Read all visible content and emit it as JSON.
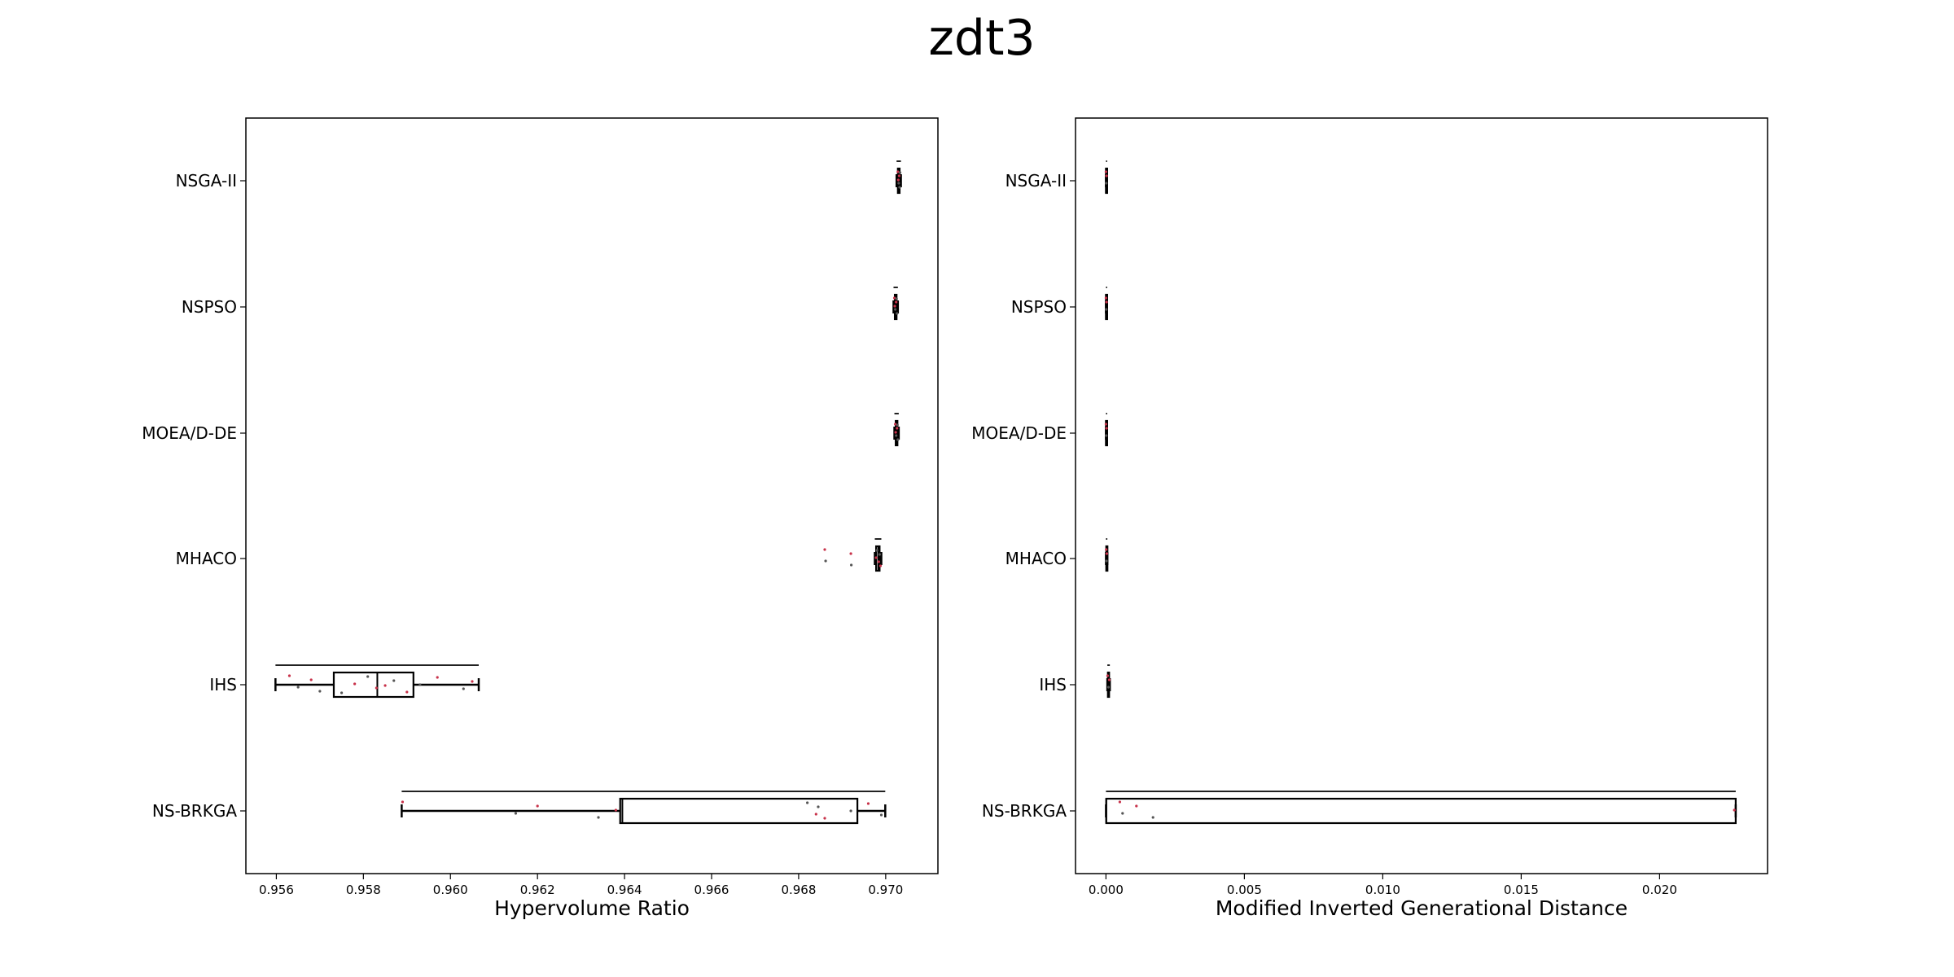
{
  "title": "zdt3",
  "chart_data": [
    {
      "type": "box",
      "xlabel": "Hypervolume Ratio",
      "xlim": [
        0.9553,
        0.9712
      ],
      "xticks": [
        "0.956",
        "0.958",
        "0.960",
        "0.962",
        "0.964",
        "0.966",
        "0.968",
        "0.970"
      ],
      "categories": [
        "NSGA-II",
        "NSPSO",
        "MOEA/D-DE",
        "MHACO",
        "IHS",
        "NS-BRKGA"
      ],
      "boxes": [
        {
          "name": "NSGA-II",
          "whislo": 0.97025,
          "q1": 0.97028,
          "med": 0.9703,
          "q3": 0.97032,
          "whishi": 0.97035,
          "points": [
            0.97028,
            0.9703,
            0.97031,
            0.97032,
            0.97029,
            0.97033
          ]
        },
        {
          "name": "NSPSO",
          "whislo": 0.97018,
          "q1": 0.97021,
          "med": 0.97023,
          "q3": 0.97025,
          "whishi": 0.97028,
          "points": [
            0.9702,
            0.97022,
            0.97024,
            0.97026,
            0.97021,
            0.97025
          ]
        },
        {
          "name": "MOEA/D-DE",
          "whislo": 0.9702,
          "q1": 0.97023,
          "med": 0.97025,
          "q3": 0.97027,
          "whishi": 0.9703,
          "points": [
            0.97022,
            0.97024,
            0.97026,
            0.97028,
            0.97023,
            0.97027
          ]
        },
        {
          "name": "MHACO",
          "whislo": 0.96975,
          "q1": 0.96978,
          "med": 0.96983,
          "q3": 0.96986,
          "whishi": 0.9699,
          "points": [
            0.9686,
            0.96862,
            0.9692,
            0.96921,
            0.96978,
            0.9698,
            0.96984,
            0.96986,
            0.96988
          ]
        },
        {
          "name": "IHS",
          "whislo": 0.95598,
          "q1": 0.95732,
          "med": 0.95832,
          "q3": 0.95915,
          "whishi": 0.96065,
          "points": [
            0.9563,
            0.9565,
            0.9568,
            0.957,
            0.9578,
            0.9581,
            0.9583,
            0.9587,
            0.959,
            0.9593,
            0.9597,
            0.9603,
            0.9605,
            0.9575,
            0.9585
          ]
        },
        {
          "name": "NS-BRKGA",
          "whislo": 0.95888,
          "q1": 0.9639,
          "med": 0.96395,
          "q3": 0.96935,
          "whishi": 0.96999,
          "points": [
            0.9589,
            0.9615,
            0.962,
            0.9634,
            0.9638,
            0.9682,
            0.9684,
            0.96845,
            0.9686,
            0.9692,
            0.9696,
            0.9699
          ]
        }
      ]
    },
    {
      "type": "box",
      "xlabel": "Modified Inverted Generational Distance",
      "xlim": [
        -0.0011,
        0.0239
      ],
      "xticks": [
        "0.000",
        "0.005",
        "0.010",
        "0.015",
        "0.020"
      ],
      "categories": [
        "NSGA-II",
        "NSPSO",
        "MOEA/D-DE",
        "MHACO",
        "IHS",
        "NS-BRKGA"
      ],
      "boxes": [
        {
          "name": "NSGA-II",
          "whislo": 0.0,
          "q1": 0.0,
          "med": 0.0,
          "q3": 2e-05,
          "whishi": 4e-05,
          "points": [
            0.0,
            1e-05,
            2e-05
          ]
        },
        {
          "name": "NSPSO",
          "whislo": 0.0,
          "q1": 0.0,
          "med": 0.0,
          "q3": 2e-05,
          "whishi": 3e-05,
          "points": [
            0.0,
            1e-05,
            2e-05
          ]
        },
        {
          "name": "MOEA/D-DE",
          "whislo": 0.0,
          "q1": 0.0,
          "med": 0.0,
          "q3": 2e-05,
          "whishi": 3e-05,
          "points": [
            0.0,
            1e-05,
            2e-05
          ]
        },
        {
          "name": "MHACO",
          "whislo": 0.0,
          "q1": 1e-05,
          "med": 2e-05,
          "q3": 3e-05,
          "whishi": 5e-05,
          "points": [
            1e-05,
            2e-05,
            3e-05
          ]
        },
        {
          "name": "IHS",
          "whislo": 5e-05,
          "q1": 7e-05,
          "med": 9e-05,
          "q3": 0.00011,
          "whishi": 0.00014,
          "points": [
            6e-05,
            9e-05,
            0.00012
          ]
        },
        {
          "name": "NS-BRKGA",
          "whislo": 0.0,
          "q1": 1e-05,
          "med": 1e-05,
          "q3": 0.02275,
          "whishi": 0.02275,
          "points": [
            0.0005,
            0.0006,
            0.0011,
            0.0017,
            0.0227
          ]
        }
      ]
    }
  ]
}
